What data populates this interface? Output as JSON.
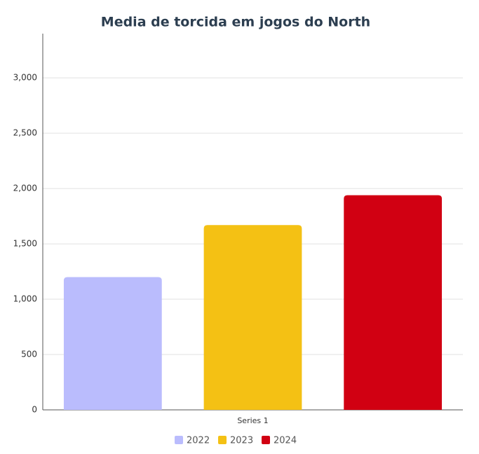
{
  "chart_data": {
    "type": "bar",
    "title": "Media de torcida em jogos do North",
    "categories": [
      "Series 1"
    ],
    "series": [
      {
        "name": "2022",
        "color": "#babcfd",
        "values": [
          1200
        ]
      },
      {
        "name": "2023",
        "color": "#f4c114",
        "values": [
          1670
        ]
      },
      {
        "name": "2024",
        "color": "#d10012",
        "values": [
          1940
        ]
      }
    ],
    "ylim": [
      0,
      3400
    ],
    "yticks": [
      0,
      500,
      {
        "value": 1000,
        "label": "1,000"
      },
      {
        "value": 1500,
        "label": "1,500"
      },
      {
        "value": 2000,
        "label": "2,000"
      },
      {
        "value": 2500,
        "label": "2,500"
      },
      {
        "value": 3000,
        "label": "3,000"
      }
    ],
    "grid": true,
    "legend": "bottom"
  }
}
